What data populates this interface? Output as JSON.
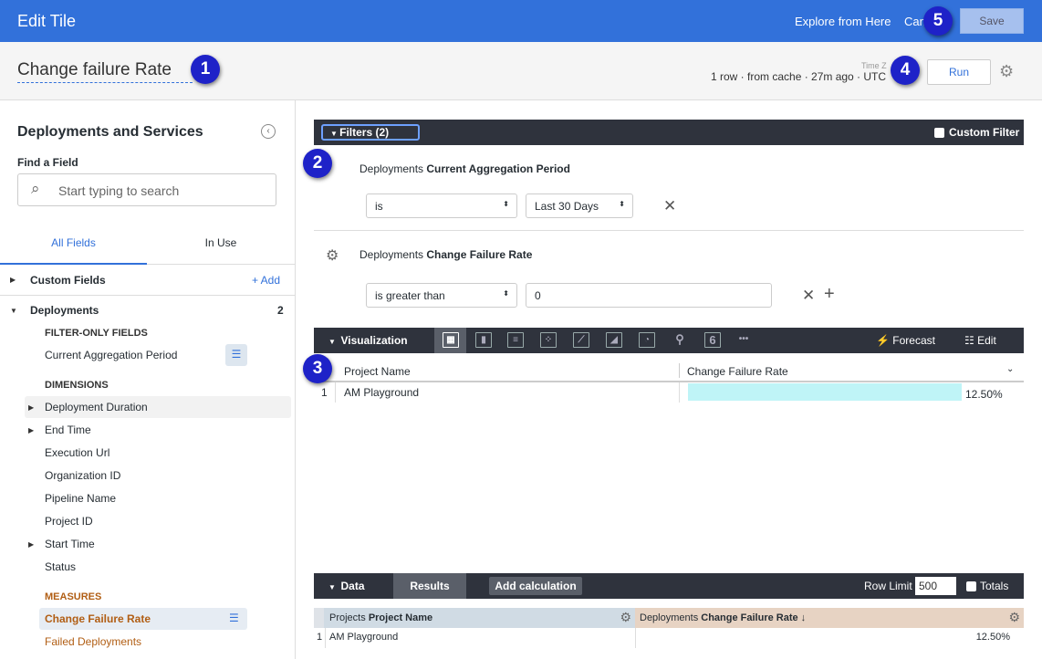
{
  "topbar": {
    "title": "Edit Tile",
    "explore": "Explore from Here",
    "cancel": "Can",
    "save": "Save"
  },
  "titlebar": {
    "tile_title": "Change failure Rate",
    "status": "1 row · from cache · 27m ago · UTC",
    "timezone_label": "Time Z",
    "run": "Run"
  },
  "badges": [
    "1",
    "2",
    "3",
    "4",
    "5"
  ],
  "sidebar": {
    "title": "Deployments and Services",
    "find_label": "Find a Field",
    "search_placeholder": "Start typing to search",
    "tabs": [
      "All Fields",
      "In Use"
    ],
    "custom_fields": "Custom Fields",
    "add": "+ Add",
    "deployments": "Deployments",
    "deployments_count": "2",
    "filter_only_heading": "FILTER-ONLY FIELDS",
    "filter_only": [
      "Current Aggregation Period"
    ],
    "dimensions_heading": "DIMENSIONS",
    "dimensions": [
      "Deployment Duration",
      "End Time",
      "Execution Url",
      "Organization ID",
      "Pipeline Name",
      "Project ID",
      "Start Time",
      "Status"
    ],
    "measures_heading": "MEASURES",
    "measures": [
      "Change Failure Rate",
      "Failed Deployments"
    ]
  },
  "filters": {
    "label": "Filters (2)",
    "custom_filter": "Custom Filter",
    "items": [
      {
        "view": "Deployments",
        "field": "Current Aggregation Period",
        "operator": "is",
        "value": "Last 30 Days"
      },
      {
        "view": "Deployments",
        "field": "Change Failure Rate",
        "operator": "is greater than",
        "value": "0"
      }
    ]
  },
  "visualization": {
    "label": "Visualization",
    "forecast": "Forecast",
    "edit": "Edit",
    "single_value_icon": "6",
    "columns": [
      "Project Name",
      "Change Failure Rate"
    ],
    "rows": [
      {
        "index": "1",
        "project": "AM Playground",
        "rate": "12.50%",
        "bar_fraction": 1.0
      }
    ],
    "bar_color": "#bff4f7"
  },
  "data": {
    "label": "Data",
    "results": "Results",
    "add_calc": "Add calculation",
    "row_limit_label": "Row Limit",
    "row_limit": "500",
    "totals": "Totals",
    "col1_view": "Projects",
    "col1_field": "Project Name",
    "col2_view": "Deployments",
    "col2_field": "Change Failure Rate ↓",
    "rows": [
      {
        "index": "1",
        "project": "AM Playground",
        "rate": "12.50%"
      }
    ]
  },
  "colors": {
    "topbar": "#3271da",
    "dimension_header": "#d0dbe4",
    "measure_header": "#e7d3c3",
    "measure_text": "#b15e14",
    "badge": "#1e22c8"
  }
}
